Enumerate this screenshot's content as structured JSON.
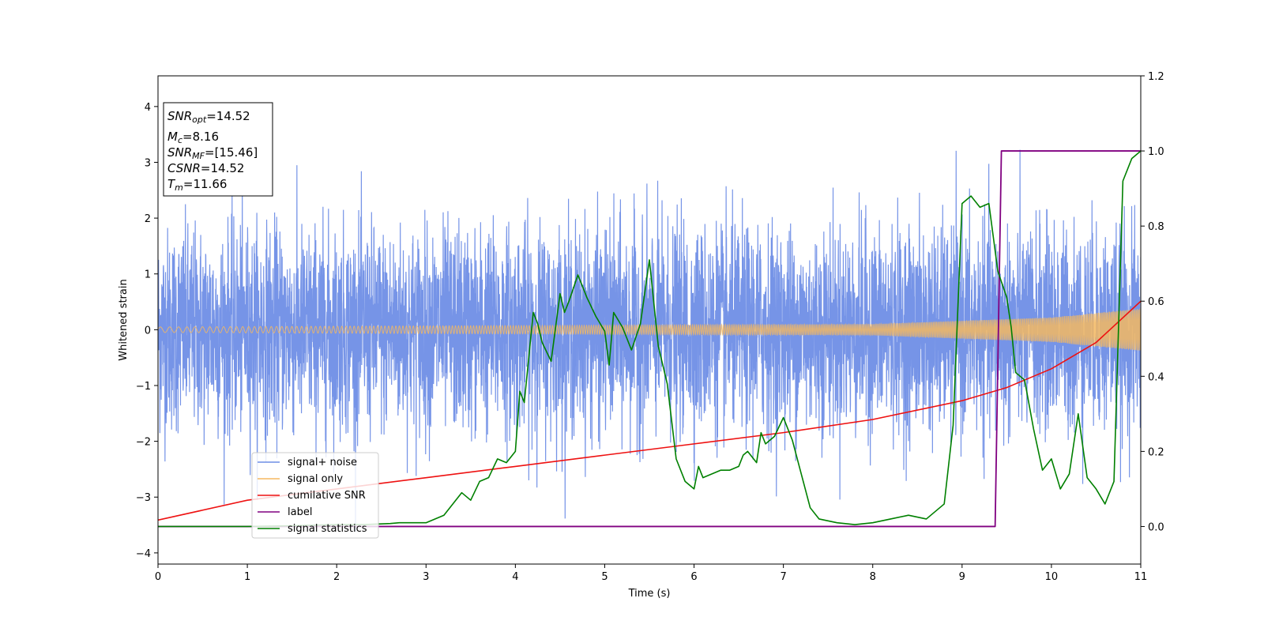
{
  "chart_data": {
    "type": "line",
    "title": "",
    "xlabel": "Time (s)",
    "ylabel": "Whitened strain",
    "xlim": [
      0,
      11
    ],
    "ylim": [
      -4.2,
      4.55
    ],
    "y2lim": [
      -0.1,
      1.2
    ],
    "xticks": [
      "0",
      "1",
      "2",
      "3",
      "4",
      "5",
      "6",
      "7",
      "8",
      "9",
      "10",
      "11"
    ],
    "yticks": [
      "−4",
      "−3",
      "−2",
      "−1",
      "0",
      "1",
      "2",
      "3",
      "4"
    ],
    "y2ticks": [
      "0.0",
      "0.2",
      "0.4",
      "0.6",
      "0.8",
      "1.0",
      "1.2"
    ],
    "grid": false,
    "legend_position": "lower-left",
    "annotation": {
      "snr_opt_label": "SNR",
      "snr_opt_sub": "opt",
      "snr_opt_value": "=14.52",
      "mc_label": "M",
      "mc_sub": "c",
      "mc_value": "=8.16",
      "snr_mf_label": "SNR",
      "snr_mf_sub": "MF",
      "snr_mf_value": "=[15.46]",
      "csnr_label": "CSNR",
      "csnr_value": "=14.52",
      "tm_label": "T",
      "tm_sub": "m",
      "tm_value": "=11.66"
    },
    "colors": {
      "noise": "#6f8ee6",
      "signal": "#f5b860",
      "cumulative_snr": "#ee1111",
      "label": "#800080",
      "statistics": "#008000"
    },
    "series": [
      {
        "name": "signal+ noise",
        "axis": "left",
        "style": "noisy-band",
        "std": 0.9,
        "x_range": [
          0,
          11
        ]
      },
      {
        "name": "signal only",
        "axis": "left",
        "style": "chirp",
        "amplitude": [
          [
            0,
            0.05
          ],
          [
            8,
            0.1
          ],
          [
            10,
            0.22
          ],
          [
            11,
            0.38
          ]
        ]
      },
      {
        "name": "cumilative SNR",
        "axis": "right",
        "x": [
          0,
          1,
          2,
          3,
          4,
          5,
          6,
          7,
          8,
          9,
          9.5,
          10,
          10.5,
          11
        ],
        "y": [
          0.017,
          0.07,
          0.1,
          0.13,
          0.16,
          0.19,
          0.22,
          0.25,
          0.285,
          0.335,
          0.37,
          0.42,
          0.49,
          0.6
        ]
      },
      {
        "name": "label",
        "axis": "right",
        "x": [
          0,
          9.37,
          9.44,
          11
        ],
        "y": [
          0,
          0,
          1,
          1
        ]
      },
      {
        "name": "signal statistics",
        "axis": "right",
        "x": [
          0,
          0.5,
          1,
          1.5,
          2,
          2.3,
          2.6,
          2.7,
          3,
          3.2,
          3.4,
          3.5,
          3.6,
          3.7,
          3.8,
          3.9,
          4.0,
          4.05,
          4.1,
          4.2,
          4.25,
          4.3,
          4.4,
          4.5,
          4.55,
          4.6,
          4.7,
          4.8,
          4.9,
          5.0,
          5.05,
          5.1,
          5.2,
          5.3,
          5.4,
          5.5,
          5.6,
          5.7,
          5.8,
          5.9,
          6.0,
          6.05,
          6.1,
          6.2,
          6.3,
          6.4,
          6.5,
          6.55,
          6.6,
          6.7,
          6.75,
          6.8,
          6.9,
          7.0,
          7.1,
          7.2,
          7.3,
          7.4,
          7.6,
          7.8,
          8.0,
          8.2,
          8.4,
          8.6,
          8.8,
          8.9,
          9.0,
          9.05,
          9.1,
          9.2,
          9.3,
          9.4,
          9.5,
          9.55,
          9.6,
          9.7,
          9.8,
          9.9,
          10.0,
          10.1,
          10.2,
          10.3,
          10.4,
          10.5,
          10.6,
          10.7,
          10.8,
          10.9,
          11.0
        ],
        "y": [
          0,
          0,
          0,
          0.002,
          0.005,
          0.005,
          0.008,
          0.01,
          0.01,
          0.03,
          0.09,
          0.07,
          0.12,
          0.13,
          0.18,
          0.17,
          0.2,
          0.36,
          0.33,
          0.57,
          0.54,
          0.49,
          0.44,
          0.62,
          0.57,
          0.6,
          0.67,
          0.61,
          0.56,
          0.52,
          0.43,
          0.57,
          0.53,
          0.47,
          0.54,
          0.71,
          0.48,
          0.38,
          0.18,
          0.12,
          0.1,
          0.16,
          0.13,
          0.14,
          0.15,
          0.15,
          0.16,
          0.19,
          0.2,
          0.17,
          0.25,
          0.22,
          0.24,
          0.29,
          0.23,
          0.14,
          0.05,
          0.02,
          0.01,
          0.005,
          0.01,
          0.02,
          0.03,
          0.02,
          0.06,
          0.27,
          0.86,
          0.87,
          0.88,
          0.85,
          0.86,
          0.68,
          0.61,
          0.53,
          0.41,
          0.39,
          0.26,
          0.15,
          0.18,
          0.1,
          0.14,
          0.3,
          0.13,
          0.1,
          0.06,
          0.12,
          0.92,
          0.98,
          1.0
        ]
      }
    ]
  }
}
